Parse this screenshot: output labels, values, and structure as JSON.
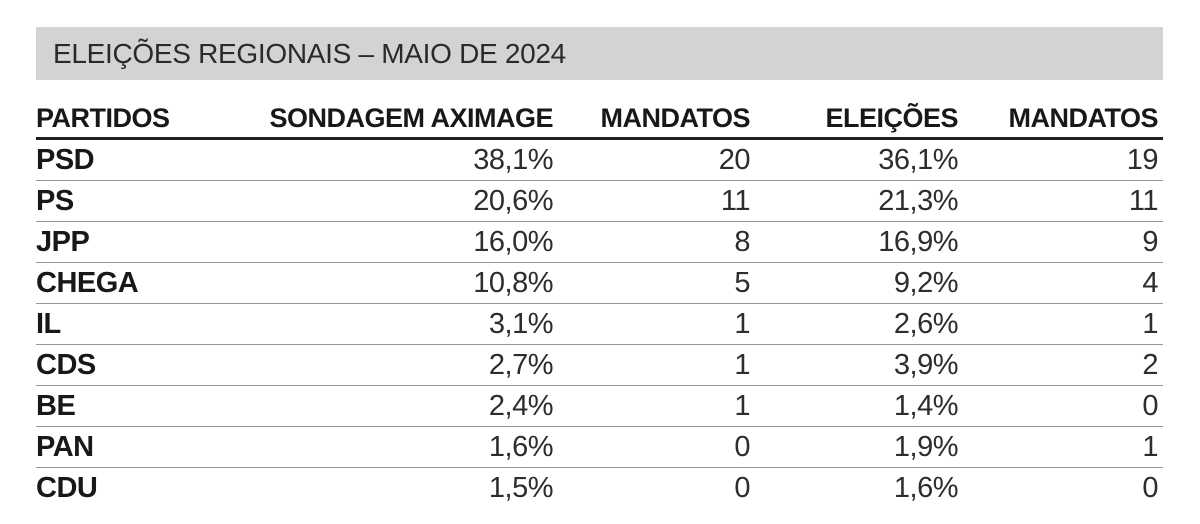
{
  "title_bar": {
    "label": "ELEIÇÕES REGIONAIS – MAIO DE 2024",
    "background": "#d1d3d4"
  },
  "table": {
    "columns": [
      "PARTIDOS",
      "SONDAGEM AXIMAGE",
      "MANDATOS",
      "ELEIÇÕES",
      "MANDATOS"
    ],
    "rows": [
      {
        "party": "PSD",
        "sondagem": "38,1%",
        "mandatos_sondagem": "20",
        "eleicoes": "36,1%",
        "mandatos_eleicoes": "19"
      },
      {
        "party": "PS",
        "sondagem": "20,6%",
        "mandatos_sondagem": "11",
        "eleicoes": "21,3%",
        "mandatos_eleicoes": "11"
      },
      {
        "party": "JPP",
        "sondagem": "16,0%",
        "mandatos_sondagem": "8",
        "eleicoes": "16,9%",
        "mandatos_eleicoes": "9"
      },
      {
        "party": "CHEGA",
        "sondagem": "10,8%",
        "mandatos_sondagem": "5",
        "eleicoes": "9,2%",
        "mandatos_eleicoes": "4"
      },
      {
        "party": "IL",
        "sondagem": "3,1%",
        "mandatos_sondagem": "1",
        "eleicoes": "2,6%",
        "mandatos_eleicoes": "1"
      },
      {
        "party": "CDS",
        "sondagem": "2,7%",
        "mandatos_sondagem": "1",
        "eleicoes": "3,9%",
        "mandatos_eleicoes": "2"
      },
      {
        "party": "BE",
        "sondagem": "2,4%",
        "mandatos_sondagem": "1",
        "eleicoes": "1,4%",
        "mandatos_eleicoes": "0"
      },
      {
        "party": "PAN",
        "sondagem": "1,6%",
        "mandatos_sondagem": "0",
        "eleicoes": "1,9%",
        "mandatos_eleicoes": "1"
      },
      {
        "party": "CDU",
        "sondagem": "1,5%",
        "mandatos_sondagem": "0",
        "eleicoes": "1,6%",
        "mandatos_eleicoes": "0"
      }
    ]
  },
  "colors": {
    "title_bar_background": "#d1d3d4",
    "header_text": "#1a1718",
    "header_rule": "#231f20",
    "row_separator": "#979797",
    "value_text": "#2e2c2d",
    "page_background": "#ffffff"
  },
  "chart_data": {
    "type": "table",
    "title": "ELEIÇÕES REGIONAIS – MAIO DE 2024",
    "columns": [
      "PARTIDOS",
      "SONDAGEM AXIMAGE",
      "MANDATOS",
      "ELEIÇÕES",
      "MANDATOS"
    ],
    "rows": [
      [
        "PSD",
        "38,1%",
        "20",
        "36,1%",
        "19"
      ],
      [
        "PS",
        "20,6%",
        "11",
        "21,3%",
        "11"
      ],
      [
        "JPP",
        "16,0%",
        "8",
        "16,9%",
        "9"
      ],
      [
        "CHEGA",
        "10,8%",
        "5",
        "9,2%",
        "4"
      ],
      [
        "IL",
        "3,1%",
        "1",
        "2,6%",
        "1"
      ],
      [
        "CDS",
        "2,7%",
        "1",
        "3,9%",
        "2"
      ],
      [
        "BE",
        "2,4%",
        "1",
        "1,4%",
        "0"
      ],
      [
        "PAN",
        "1,6%",
        "0",
        "1,9%",
        "1"
      ],
      [
        "CDU",
        "1,5%",
        "0",
        "1,6%",
        "0"
      ]
    ],
    "notes": "Comparison of Aximage poll percentages/seats vs actual election percentages/seats; values use Portuguese decimal commas; grid of thin gray separators, heavy rule under header, no line under last row"
  }
}
